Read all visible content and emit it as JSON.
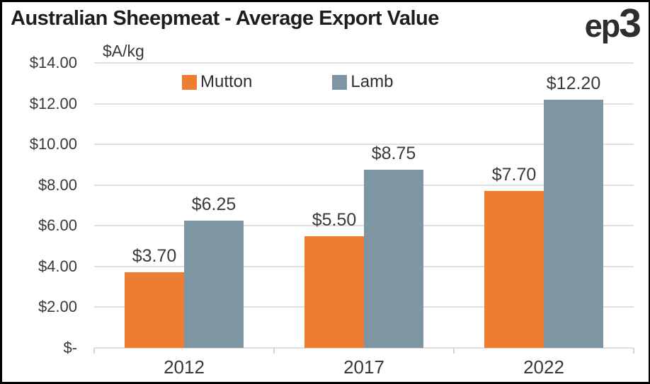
{
  "frame": {
    "title": "Australian Sheepmeat - Average Export Value",
    "logo_prefix": "ep",
    "logo_digit": "3"
  },
  "chart_data": {
    "type": "bar",
    "title": "Australian Sheepmeat - Average Export Value",
    "axis_unit_label": "$A/kg",
    "xlabel": "",
    "ylabel": "$A/kg",
    "categories": [
      "2012",
      "2017",
      "2022"
    ],
    "series": [
      {
        "name": "Mutton",
        "color": "#ec7d31",
        "values": [
          3.7,
          5.5,
          7.7
        ],
        "value_labels": [
          "$3.70",
          "$5.50",
          "$7.70"
        ]
      },
      {
        "name": "Lamb",
        "color": "#7e95a3",
        "values": [
          6.25,
          8.75,
          12.2
        ],
        "value_labels": [
          "$6.25",
          "$8.75",
          "$12.20"
        ]
      }
    ],
    "ylim": [
      0,
      14
    ],
    "yticks": [
      {
        "value": 14,
        "label": "$14.00"
      },
      {
        "value": 12,
        "label": "$12.00"
      },
      {
        "value": 10,
        "label": "$10.00"
      },
      {
        "value": 8,
        "label": "$8.00"
      },
      {
        "value": 6,
        "label": "$6.00"
      },
      {
        "value": 4,
        "label": "$4.00"
      },
      {
        "value": 2,
        "label": "$2.00"
      },
      {
        "value": 0,
        "label": "$-"
      }
    ],
    "grid": true,
    "legend_position": "top-inside",
    "colors": {
      "grid": "#e0e0e0",
      "axis_text": "#383838",
      "data_label_text": "#3a3a3a",
      "title_text": "#1d1d1d"
    }
  }
}
